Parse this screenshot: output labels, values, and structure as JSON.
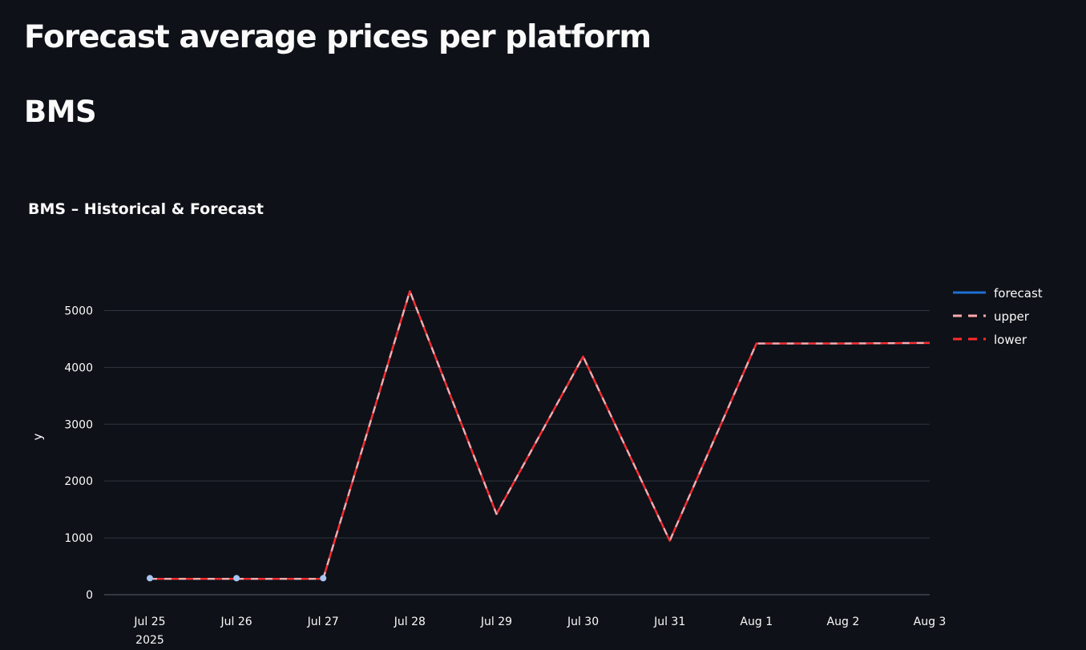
{
  "page": {
    "title": "Forecast average prices per platform",
    "section_title": "BMS"
  },
  "chart_data": {
    "type": "line",
    "title": "BMS – Historical & Forecast",
    "xlabel": "",
    "ylabel": "y",
    "x": [
      "Jul 25",
      "Jul 26",
      "Jul 27",
      "Jul 28",
      "Jul 29",
      "Jul 30",
      "Jul 31",
      "Aug 1",
      "Aug 2",
      "Aug 3"
    ],
    "x_year_label": "2025",
    "ylim": [
      0,
      5500
    ],
    "yticks": [
      0,
      1000,
      2000,
      3000,
      4000,
      5000
    ],
    "grid": true,
    "legend_position": "top-right",
    "historical": {
      "x": [
        "Jul 25",
        "Jul 26",
        "Jul 27"
      ],
      "values": [
        290,
        290,
        290
      ],
      "color": "#a7c6f2"
    },
    "series": [
      {
        "name": "forecast",
        "color": "#1f6fd1",
        "dash": "solid",
        "values": [
          280,
          280,
          280,
          5340,
          1420,
          4190,
          950,
          4420,
          4420,
          4430
        ]
      },
      {
        "name": "upper",
        "color": "#ffabab",
        "dash": "dashed",
        "values": [
          280,
          280,
          280,
          5340,
          1420,
          4190,
          950,
          4420,
          4420,
          4430
        ]
      },
      {
        "name": "lower",
        "color": "#ff2b2b",
        "dash": "dashed",
        "values": [
          280,
          280,
          280,
          5340,
          1420,
          4190,
          950,
          4420,
          4420,
          4430
        ]
      }
    ]
  }
}
